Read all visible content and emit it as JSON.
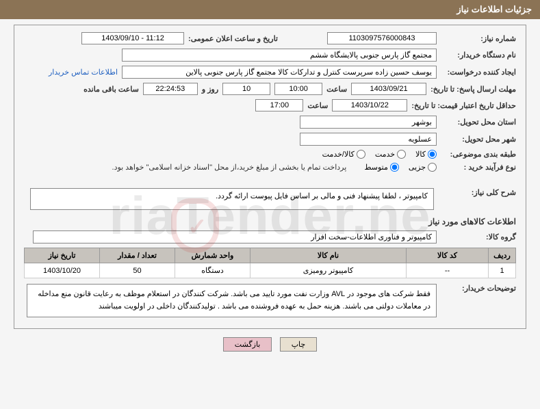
{
  "header": {
    "title": "جزئیات اطلاعات نیاز"
  },
  "need_number": {
    "label": "شماره نیاز:",
    "value": "1103097576000843"
  },
  "announce": {
    "label": "تاریخ و ساعت اعلان عمومی:",
    "value": "1403/09/10 - 11:12"
  },
  "buyer_org": {
    "label": "نام دستگاه خریدار:",
    "value": "مجتمع گاز پارس جنوبی  پالایشگاه ششم"
  },
  "requester": {
    "label": "ایجاد کننده درخواست:",
    "value": "یوسف حسین زاده سرپرست کنترل و تدارکات کالا مجتمع گاز پارس جنوبی  پالاین",
    "contact_link": "اطلاعات تماس خریدار"
  },
  "deadline_reply": {
    "label": "مهلت ارسال پاسخ: تا تاریخ:",
    "date": "1403/09/21",
    "time_label": "ساعت",
    "time": "10:00",
    "days": "10",
    "days_suffix": "روز و",
    "hms": "22:24:53",
    "remaining": "ساعت باقی مانده"
  },
  "min_validity": {
    "label": "حداقل تاریخ اعتبار قیمت: تا تاریخ:",
    "date": "1403/10/22",
    "time_label": "ساعت",
    "time": "17:00"
  },
  "province": {
    "label": "استان محل تحویل:",
    "value": "بوشهر"
  },
  "city": {
    "label": "شهر محل تحویل:",
    "value": "عسلویه"
  },
  "topic_class": {
    "label": "طبقه بندی موضوعی:",
    "options": {
      "goods": "کالا",
      "service": "خدمت",
      "both": "کالا/خدمت"
    },
    "selected": "goods"
  },
  "purchase_process": {
    "label": "نوع فرآیند خرید :",
    "options": {
      "partial": "جزیی",
      "medium": "متوسط"
    },
    "selected": "medium",
    "note": "پرداخت تمام یا بخشی از مبلغ خرید،از محل \"اسناد خزانه اسلامی\" خواهد بود."
  },
  "general_desc": {
    "label": "شرح کلی نیاز:",
    "value": "کامپیوتر ، لطفا پیشنهاد فنی و مالی بر اساس فایل پیوست ارائه گردد."
  },
  "goods_info_title": "اطلاعات کالاهای مورد نیاز",
  "goods_group": {
    "label": "گروه کالا:",
    "value": "کامپیوتر و فناوری اطلاعات-سخت افزار"
  },
  "table": {
    "columns": [
      "ردیف",
      "کد کالا",
      "نام کالا",
      "واحد شمارش",
      "تعداد / مقدار",
      "تاریخ نیاز"
    ],
    "rows": [
      [
        "1",
        "--",
        "کامپیوتر رومیزی",
        "دستگاه",
        "50",
        "1403/10/20"
      ]
    ],
    "col_widths": [
      "40px",
      "120px",
      "auto",
      "110px",
      "110px",
      "110px"
    ]
  },
  "buyer_notes": {
    "label": "توضیحات خریدار:",
    "value": "فقط شرکت های موجود در AVL وزارت نفت مورد تایید می باشد. شرکت کنندگان در استعلام موظف به رعایت قانون منع مداخله در معاملات دولتی می باشند. هزینه حمل به عهده فروشنده می باشد . تولیدکنندگان داخلی در اولویت میباشند"
  },
  "buttons": {
    "print": "چاپ",
    "back": "بازگشت"
  },
  "watermark": "riaTender.ne"
}
